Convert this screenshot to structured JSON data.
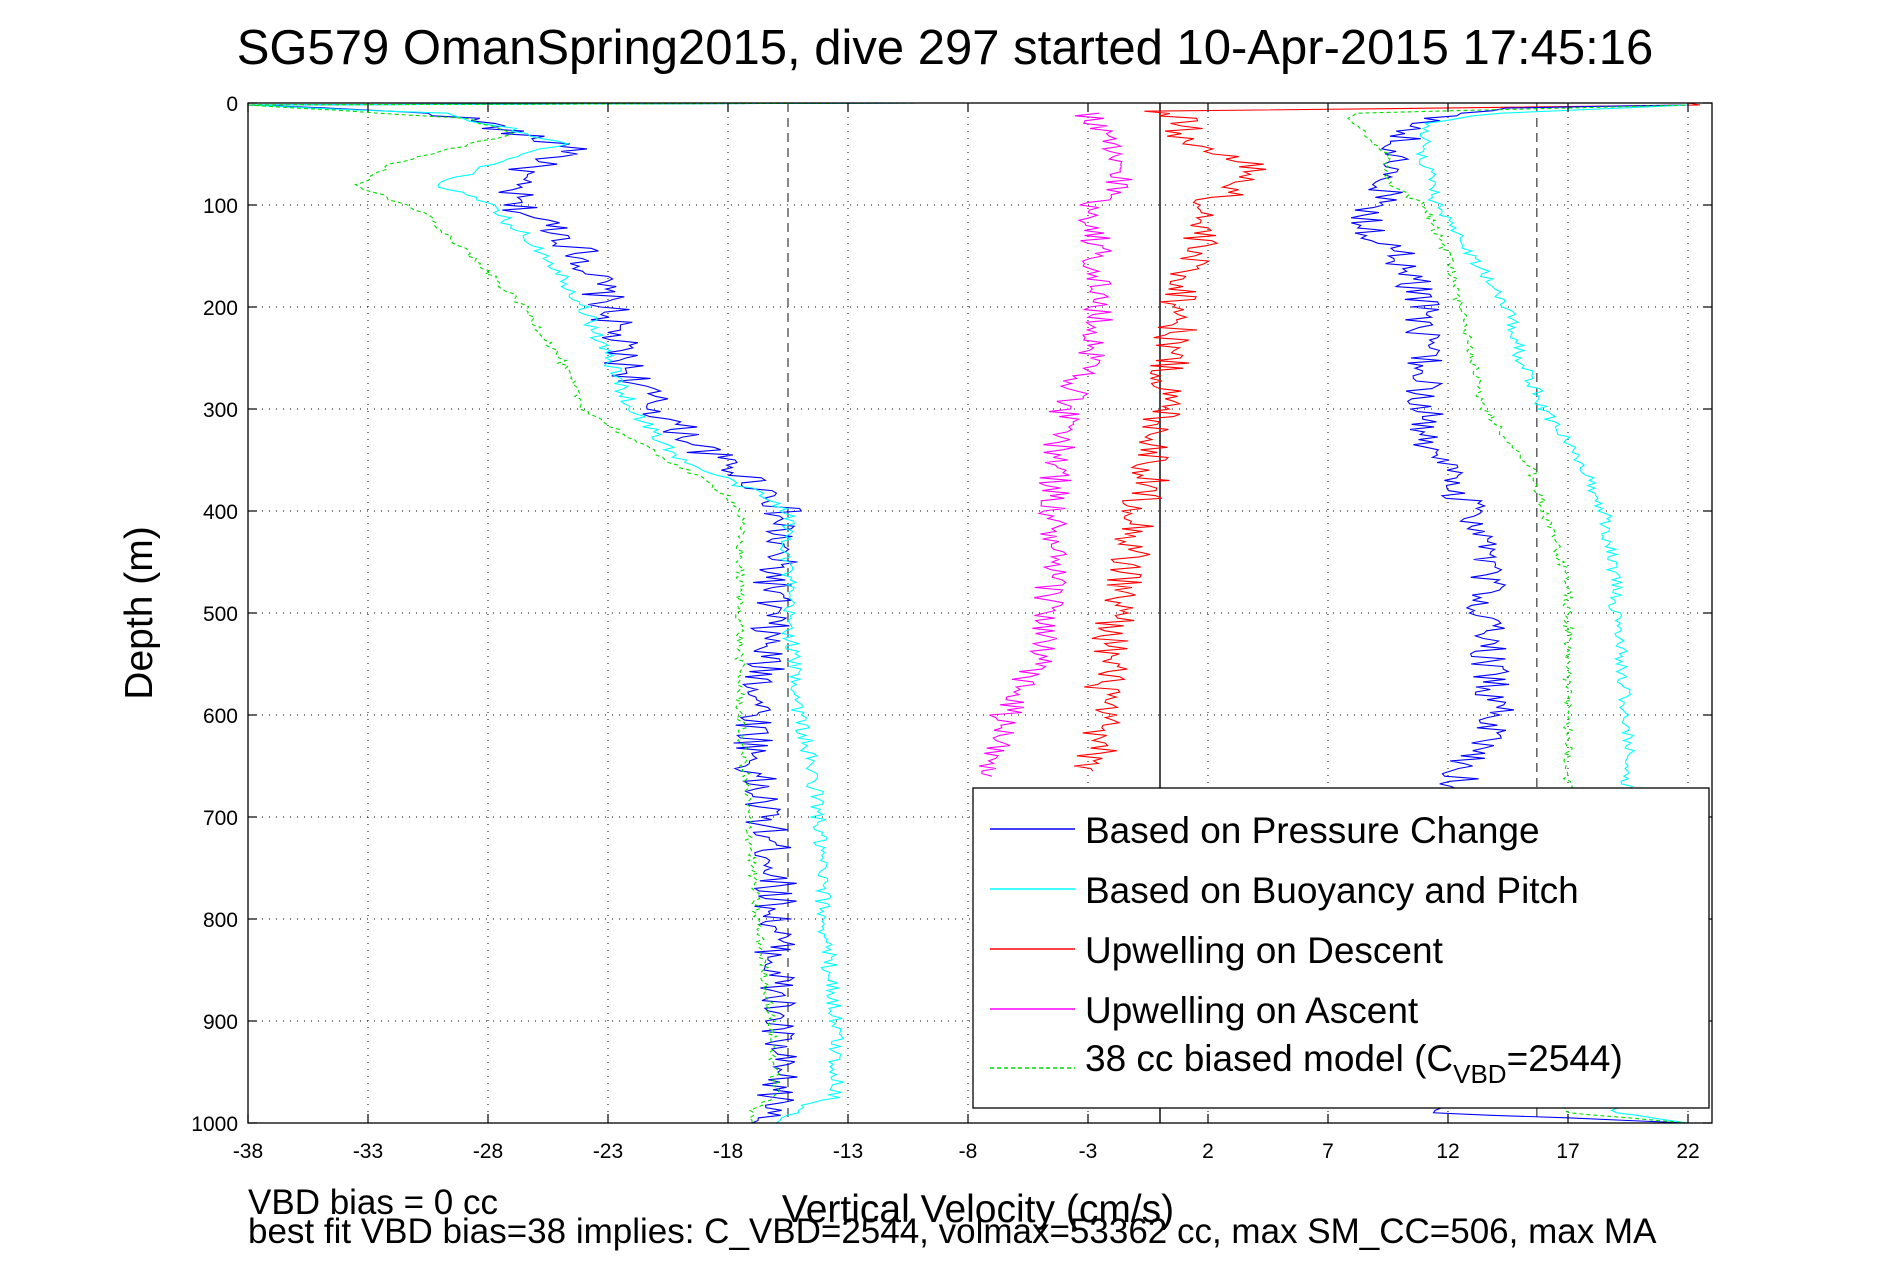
{
  "chart_data": {
    "type": "line",
    "title": "SG579 OmanSpring2015, dive 297 started 10-Apr-2015 17:45:16",
    "xlabel": "Vertical Velocity (cm/s)",
    "ylabel": "Depth (m)",
    "xlim": [
      -38,
      23
    ],
    "ylim": [
      0,
      1000
    ],
    "y_reversed": true,
    "grid": true,
    "legend_position": "bottom-right",
    "x_ticks": [
      "-38",
      "-33",
      "-28",
      "-23",
      "-18",
      "-13",
      "-8",
      "-3",
      "2",
      "7",
      "12",
      "17",
      "22"
    ],
    "y_ticks": [
      "0",
      "100",
      "200",
      "300",
      "400",
      "500",
      "600",
      "700",
      "800",
      "900",
      "1000"
    ],
    "reference_lines": [
      {
        "x": -15.5,
        "style": "dashed",
        "color": "#555555"
      },
      {
        "x": 0,
        "style": "solid",
        "color": "#000000"
      },
      {
        "x": 15.7,
        "style": "dashed",
        "color": "#555555"
      }
    ],
    "series": [
      {
        "name": "Based on Pressure Change",
        "color": "#0000ff",
        "noise": 0.9,
        "width": 1.1,
        "depth": [
          0,
          2,
          10,
          20,
          30,
          45,
          60,
          75,
          100,
          125,
          150,
          200,
          250,
          300,
          340,
          370,
          390,
          450,
          550,
          650,
          750,
          850,
          950,
          990,
          1000
        ],
        "values": [
          -10,
          -38,
          -30,
          -28,
          -27,
          -24,
          -26,
          -27,
          -27,
          -25,
          -24,
          -23,
          -22.5,
          -21,
          -19,
          -17,
          -15.8,
          -16,
          -16.5,
          -17,
          -16,
          -16,
          -16,
          -16,
          -17
        ]
      },
      {
        "name": "Based on Buoyancy and Pitch",
        "color": "#00ffff",
        "noise": 0.35,
        "width": 1.1,
        "depth": [
          0,
          2,
          10,
          25,
          40,
          60,
          80,
          100,
          150,
          200,
          300,
          350,
          380,
          400,
          500,
          600,
          680,
          800,
          900,
          975,
          985,
          1000
        ],
        "values": [
          -10,
          -38,
          -30,
          -27,
          -25,
          -28,
          -30,
          -28,
          -25.5,
          -24,
          -22,
          -20,
          -17,
          -15.5,
          -15.5,
          -15,
          -14.3,
          -14,
          -13.5,
          -13.5,
          -15,
          -16
        ]
      },
      {
        "name": "Upwelling on Descent",
        "color": "#ff0000",
        "noise": 0.9,
        "width": 1.1,
        "depth": [
          0,
          2,
          8,
          15,
          25,
          40,
          55,
          65,
          80,
          100,
          140,
          180,
          220,
          260,
          300,
          400,
          500,
          600,
          655
        ],
        "values": [
          22,
          22.5,
          0,
          0.8,
          1,
          1.2,
          3,
          4,
          3.5,
          1.8,
          1.5,
          1,
          0.7,
          0.3,
          0.2,
          -0.8,
          -1.8,
          -2.5,
          -2.8
        ]
      },
      {
        "name": "Upwelling on Ascent",
        "color": "#ff00ff",
        "noise": 0.7,
        "width": 1.1,
        "depth": [
          10,
          30,
          60,
          80,
          100,
          150,
          200,
          250,
          300,
          400,
          500,
          550,
          600,
          650,
          660
        ],
        "values": [
          -3,
          -2.5,
          -1.8,
          -1.6,
          -2.8,
          -2.6,
          -2.6,
          -2.8,
          -4,
          -4.5,
          -4.6,
          -5.2,
          -6.5,
          -7,
          -7
        ]
      },
      {
        "name": "38 cc biased model (C_VBD=2544)",
        "color": "#00dd00",
        "noise": 0.2,
        "width": 1.1,
        "dashed": true,
        "depth": [
          0,
          2,
          15,
          30,
          60,
          80,
          95,
          110,
          200,
          250,
          300,
          330,
          370,
          385,
          400,
          600,
          800,
          900,
          975,
          985,
          1000
        ],
        "values": [
          -10,
          -38,
          -29,
          -27,
          -32,
          -33.5,
          -32,
          -30.5,
          -26.5,
          -25,
          -24,
          -22,
          -19,
          -18,
          -17.5,
          -17.5,
          -16.8,
          -16.2,
          -16,
          -17,
          -17
        ]
      }
    ],
    "ascent_series": [
      {
        "name": "Based on Pressure Change",
        "color": "#0000ff",
        "noise": 0.8,
        "width": 1.1,
        "depth": [
          1000,
          990,
          985,
          900,
          800,
          700,
          660,
          600,
          500,
          450,
          400,
          350,
          300,
          250,
          200,
          150,
          120,
          100,
          80,
          50,
          20,
          10,
          5,
          2
        ],
        "values": [
          22,
          12,
          12,
          12,
          12,
          12.2,
          12.5,
          14,
          13.5,
          13.8,
          13,
          11.5,
          11,
          11,
          11,
          10,
          8.5,
          9,
          9.5,
          9.8,
          10.5,
          12,
          15,
          22
        ]
      },
      {
        "name": "Based on Buoyancy and Pitch",
        "color": "#00ffff",
        "noise": 0.3,
        "width": 1.1,
        "depth": [
          1000,
          990,
          985,
          900,
          800,
          700,
          670,
          600,
          500,
          470,
          400,
          350,
          300,
          250,
          200,
          150,
          100,
          50,
          20,
          10,
          2
        ],
        "values": [
          22,
          19,
          19,
          19,
          19,
          19.2,
          19.5,
          19.5,
          19,
          19,
          18.5,
          17.5,
          16,
          15,
          14.5,
          13,
          11.5,
          11,
          11,
          14,
          22
        ]
      },
      {
        "name": "38 cc biased model (C_VBD=2544)",
        "color": "#00dd00",
        "noise": 0.2,
        "width": 1.1,
        "dashed": true,
        "depth": [
          1000,
          990,
          985,
          900,
          800,
          700,
          650,
          600,
          500,
          470,
          400,
          360,
          300,
          250,
          200,
          150,
          100,
          80,
          50,
          20,
          10,
          2
        ],
        "values": [
          22,
          17,
          17,
          17,
          17,
          17,
          17,
          17,
          17,
          17,
          16,
          15.5,
          13.5,
          13,
          12.5,
          12,
          11,
          9.5,
          9.5,
          8,
          8,
          22
        ]
      }
    ]
  },
  "figure": {
    "title": "SG579 OmanSpring2015, dive 297 started 10-Apr-2015 17:45:16",
    "xlabel": "Vertical Velocity (cm/s)",
    "ylabel": "Depth (m)",
    "footer_line1": "VBD bias = 0 cc",
    "footer_line2": "best fit VBD bias=38 implies: C_VBD=2544, volmax=53362 cc, max SM_CC=506, max MA"
  },
  "legend": {
    "items": [
      {
        "label": "Based on Pressure Change",
        "color": "#0000ff",
        "dashed": false
      },
      {
        "label": "Based on Buoyancy and Pitch",
        "color": "#00ffff",
        "dashed": false
      },
      {
        "label": "Upwelling on Descent",
        "color": "#ff0000",
        "dashed": false
      },
      {
        "label": "Upwelling on Ascent",
        "color": "#ff00ff",
        "dashed": false
      }
    ],
    "last_item": {
      "prefix": "38 cc biased model (C",
      "subscript": "VBD",
      "suffix": "=2544)",
      "color": "#00dd00",
      "dashed": true
    }
  }
}
